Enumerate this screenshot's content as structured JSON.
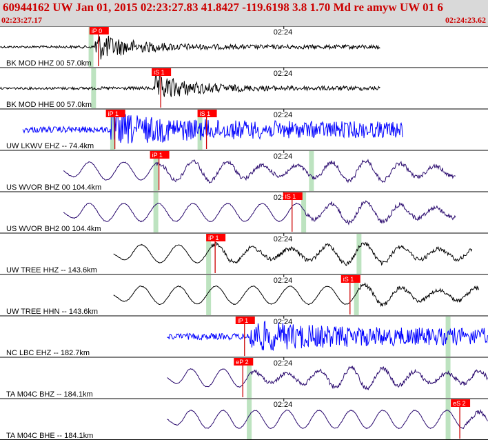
{
  "header": {
    "title": "60944162 UW Jan 01, 2015 02:23:27.83   41.8427 -119.6198  3.8 1.70 Md re amyw UW 01    6",
    "start_time": "02:23:27.17",
    "end_time": "02:24:23.62"
  },
  "colors": {
    "header_bg": "#d9d9d9",
    "header_text": "#cc0000",
    "pick_box": "#ff0000",
    "pick_line": "#cc0000",
    "window_band": "#bde3c0",
    "trace_black": "#000000",
    "trace_blue": "#0000ff",
    "trace_purple": "#2a0a6e"
  },
  "chart_data": {
    "type": "line",
    "title": "60944162 UW Jan 01, 2015 02:23:27.83   41.8427 -119.6198  3.8 1.70 Md re amyw UW 01    6",
    "x_axis": {
      "start": "02:23:27.17",
      "end": "02:24:23.62",
      "tick_label": "02:24"
    },
    "series": [
      {
        "name": "BK MOD HHZ 00 57.0km",
        "color": "#000000",
        "pick": "iP 0",
        "pick_time": "02:23:37.6",
        "windows": [
          "02:23:37.7"
        ],
        "trace_start": "02:23:27.2",
        "trace_end": "02:24:11.2",
        "onset": "02:23:38.2",
        "period_s": 0.6,
        "kind": "burst"
      },
      {
        "name": "BK MOD HHE 00 57.0km",
        "color": "#000000",
        "pick": "iS 1",
        "pick_time": "02:23:44.8",
        "windows": [
          "02:23:38.0"
        ],
        "trace_start": "02:23:27.2",
        "trace_end": "02:24:11.2",
        "onset": "02:23:45.0",
        "period_s": 0.6,
        "kind": "burst"
      },
      {
        "name": "UW LKWV EHZ -- 74.4km",
        "color": "#0000ff",
        "pick": "iP 1",
        "pick2": "iS 1",
        "pick_time": "02:23:39.5",
        "pick2_time": "02:23:50.1",
        "windows": [
          "02:23:40.2",
          "02:23:50.3"
        ],
        "trace_start": "02:23:29.8",
        "trace_end": "02:24:13.8",
        "onset": "02:23:40.0",
        "period_s": 0.35,
        "kind": "noisy"
      },
      {
        "name": "US WVOR BHZ 00 104.4km",
        "color": "#2a0a6e",
        "pick": "iP 1",
        "pick_time": "02:23:44.6",
        "windows": [
          "02:23:45.2",
          "02:24:03.2"
        ],
        "trace_start": "02:23:34.5",
        "trace_end": "02:24:19.9",
        "onset": "02:23:45.3",
        "period_s": 4.0,
        "kind": "wave"
      },
      {
        "name": "US WVOR BH2 00 104.4km",
        "color": "#2a0a6e",
        "pick": "iS 1",
        "pick_time": "02:24:00.0",
        "windows": [
          "02:23:45.2",
          "02:24:02.3"
        ],
        "trace_start": "02:23:34.5",
        "trace_end": "02:24:19.9",
        "onset": "02:24:02.5",
        "period_s": 4.0,
        "kind": "wave"
      },
      {
        "name": "UW TREE HHZ -- 143.6km",
        "color": "#000000",
        "pick": "iP 1",
        "pick_time": "02:23:51.1",
        "windows": [
          "02:23:51.3",
          "02:24:08.7"
        ],
        "trace_start": "02:23:40.3",
        "trace_end": "02:24:21.8",
        "onset": "02:23:51.7",
        "period_s": 4.3,
        "kind": "wave"
      },
      {
        "name": "UW TREE HHN -- 143.6km",
        "color": "#000000",
        "pick": "iS 1",
        "pick_time": "02:24:06.7",
        "windows": [
          "02:23:51.3",
          "02:24:08.4"
        ],
        "trace_start": "02:23:40.3",
        "trace_end": "02:24:22.6",
        "onset": "02:24:08.5",
        "period_s": 4.3,
        "kind": "wave"
      },
      {
        "name": "NC LBC EHZ -- 182.7km",
        "color": "#0000ff",
        "pick": "iP 1",
        "pick_time": "02:23:54.5",
        "windows": [
          "02:24:19.0"
        ],
        "trace_start": "02:23:46.5",
        "trace_end": "02:24:23.6",
        "onset": "02:23:56.0",
        "period_s": 0.45,
        "kind": "noisy"
      },
      {
        "name": "TA M04C BHZ -- 184.1km",
        "color": "#2a0a6e",
        "pick": "eP 2",
        "pick_time": "02:23:54.3",
        "windows": [
          "02:23:56.0",
          "02:24:19.0"
        ],
        "trace_start": "02:23:46.5",
        "trace_end": "02:24:23.6",
        "onset": "02:23:56.3",
        "period_s": 3.7,
        "kind": "wave"
      },
      {
        "name": "TA M04C BHE -- 184.1km",
        "color": "#2a0a6e",
        "pick": "eS 2",
        "pick_time": "02:24:19.4",
        "windows": [
          "02:23:56.0",
          "02:24:19.0"
        ],
        "trace_start": "02:23:46.5",
        "trace_end": "02:24:23.6",
        "onset": "02:24:20.8",
        "period_s": 3.7,
        "kind": "wave"
      }
    ]
  }
}
